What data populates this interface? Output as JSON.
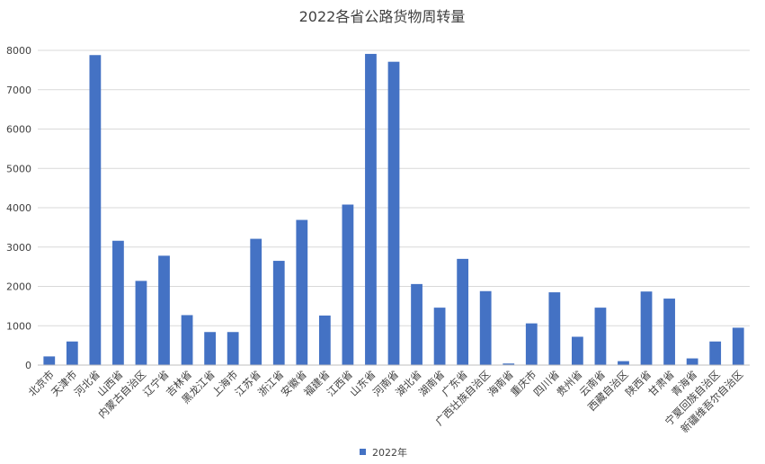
{
  "chart_data": {
    "type": "bar",
    "title": "2022各省公路货物周转量",
    "xlabel": "",
    "ylabel": "",
    "ylim": [
      0,
      8000
    ],
    "yticks": [
      0,
      1000,
      2000,
      3000,
      4000,
      5000,
      6000,
      7000,
      8000
    ],
    "grid": true,
    "legend_position": "bottom",
    "categories": [
      "北京市",
      "天津市",
      "河北省",
      "山西省",
      "内蒙古自治区",
      "辽宁省",
      "吉林省",
      "黑龙江省",
      "上海市",
      "江苏省",
      "浙江省",
      "安徽省",
      "福建省",
      "江西省",
      "山东省",
      "河南省",
      "湖北省",
      "湖南省",
      "广东省",
      "广西壮族自治区",
      "海南省",
      "重庆市",
      "四川省",
      "贵州省",
      "云南省",
      "西藏自治区",
      "陕西省",
      "甘肃省",
      "青海省",
      "宁夏回族自治区",
      "新疆维吾尔自治区"
    ],
    "series": [
      {
        "name": "2022年",
        "color": "#4472c4",
        "values": [
          220,
          600,
          7880,
          3160,
          2140,
          2780,
          1270,
          840,
          840,
          3210,
          2650,
          3690,
          1260,
          4080,
          7910,
          7710,
          2060,
          1460,
          2700,
          1880,
          40,
          1060,
          1850,
          720,
          1460,
          100,
          1870,
          1690,
          170,
          600,
          950
        ]
      }
    ]
  }
}
